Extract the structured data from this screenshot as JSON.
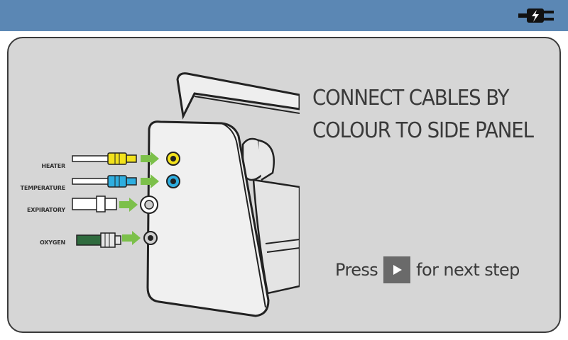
{
  "header": {
    "status_icon": "power-plug-icon",
    "bar_color": "#5b87b4"
  },
  "instruction": {
    "line1": "CONNECT CABLES BY",
    "line2": "COLOUR TO SIDE PANEL"
  },
  "prompt": {
    "before": "Press",
    "button_icon": "play-icon",
    "after": "for next step"
  },
  "cables": [
    {
      "label": "HEATER",
      "color": "#f2e21c"
    },
    {
      "label": "TEMPERATURE",
      "color": "#2eaee0"
    },
    {
      "label": "EXPIRATORY",
      "color": "#ffffff"
    },
    {
      "label": "OXYGEN",
      "color": "#2f6b3e"
    }
  ],
  "arrow_color": "#7cc04a"
}
